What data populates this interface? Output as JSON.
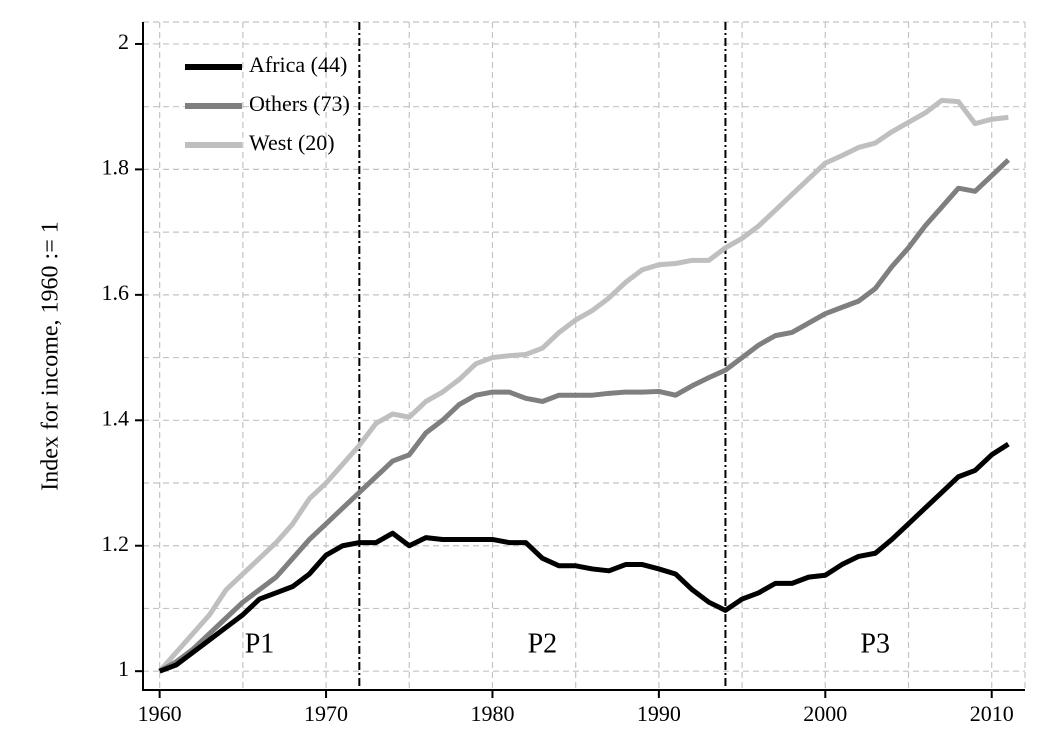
{
  "chart_data": {
    "type": "line",
    "ylabel": "Index for income, 1960 := 1",
    "x": [
      1960,
      1961,
      1962,
      1963,
      1964,
      1965,
      1966,
      1967,
      1968,
      1969,
      1970,
      1971,
      1972,
      1973,
      1974,
      1975,
      1976,
      1977,
      1978,
      1979,
      1980,
      1981,
      1982,
      1983,
      1984,
      1985,
      1986,
      1987,
      1988,
      1989,
      1990,
      1991,
      1992,
      1993,
      1994,
      1995,
      1996,
      1997,
      1998,
      1999,
      2000,
      2001,
      2002,
      2003,
      2004,
      2005,
      2006,
      2007,
      2008,
      2009,
      2010,
      2011
    ],
    "series": [
      {
        "name": "Africa (44)",
        "color": "#000000",
        "values": [
          1.0,
          1.01,
          1.03,
          1.05,
          1.07,
          1.09,
          1.115,
          1.125,
          1.135,
          1.155,
          1.185,
          1.2,
          1.205,
          1.205,
          1.22,
          1.2,
          1.213,
          1.21,
          1.21,
          1.21,
          1.21,
          1.205,
          1.205,
          1.18,
          1.168,
          1.168,
          1.163,
          1.16,
          1.17,
          1.17,
          1.163,
          1.155,
          1.13,
          1.11,
          1.097,
          1.115,
          1.125,
          1.14,
          1.14,
          1.15,
          1.153,
          1.17,
          1.183,
          1.188,
          1.21,
          1.235,
          1.26,
          1.285,
          1.31,
          1.32,
          1.345,
          1.362
        ]
      },
      {
        "name": "Others (73)",
        "color": "#7f7f7f",
        "values": [
          1.0,
          1.015,
          1.035,
          1.06,
          1.085,
          1.11,
          1.13,
          1.15,
          1.18,
          1.21,
          1.235,
          1.26,
          1.285,
          1.31,
          1.335,
          1.345,
          1.38,
          1.4,
          1.425,
          1.44,
          1.445,
          1.445,
          1.435,
          1.43,
          1.44,
          1.44,
          1.44,
          1.443,
          1.445,
          1.445,
          1.446,
          1.44,
          1.455,
          1.468,
          1.48,
          1.5,
          1.52,
          1.535,
          1.54,
          1.555,
          1.57,
          1.58,
          1.59,
          1.61,
          1.645,
          1.675,
          1.71,
          1.74,
          1.77,
          1.765,
          1.79,
          1.815
        ]
      },
      {
        "name": "West (20)",
        "color": "#bfbfbf",
        "values": [
          1.0,
          1.03,
          1.06,
          1.09,
          1.13,
          1.155,
          1.18,
          1.205,
          1.235,
          1.275,
          1.3,
          1.33,
          1.36,
          1.395,
          1.41,
          1.405,
          1.43,
          1.445,
          1.465,
          1.49,
          1.5,
          1.503,
          1.505,
          1.515,
          1.54,
          1.56,
          1.575,
          1.595,
          1.62,
          1.64,
          1.648,
          1.65,
          1.655,
          1.655,
          1.675,
          1.69,
          1.71,
          1.735,
          1.76,
          1.785,
          1.81,
          1.822,
          1.835,
          1.842,
          1.86,
          1.875,
          1.89,
          1.91,
          1.908,
          1.873,
          1.88,
          1.883
        ]
      }
    ],
    "xlim": [
      1959,
      2012
    ],
    "ylim": [
      0.97,
      2.035
    ],
    "xticks": [
      1960,
      1970,
      1980,
      1990,
      2000,
      2010
    ],
    "yticks": [
      1,
      1.2,
      1.4,
      1.6,
      1.8,
      2
    ],
    "minor_grid_x": [
      1965,
      1975,
      1985,
      1995,
      2005
    ],
    "minor_grid_y": [
      1.1,
      1.3,
      1.5,
      1.7,
      1.9
    ],
    "grid": true,
    "legend": "upper left",
    "periods": {
      "labels": [
        "P1",
        "P2",
        "P3"
      ],
      "boundaries": [
        1972,
        1994
      ]
    }
  }
}
